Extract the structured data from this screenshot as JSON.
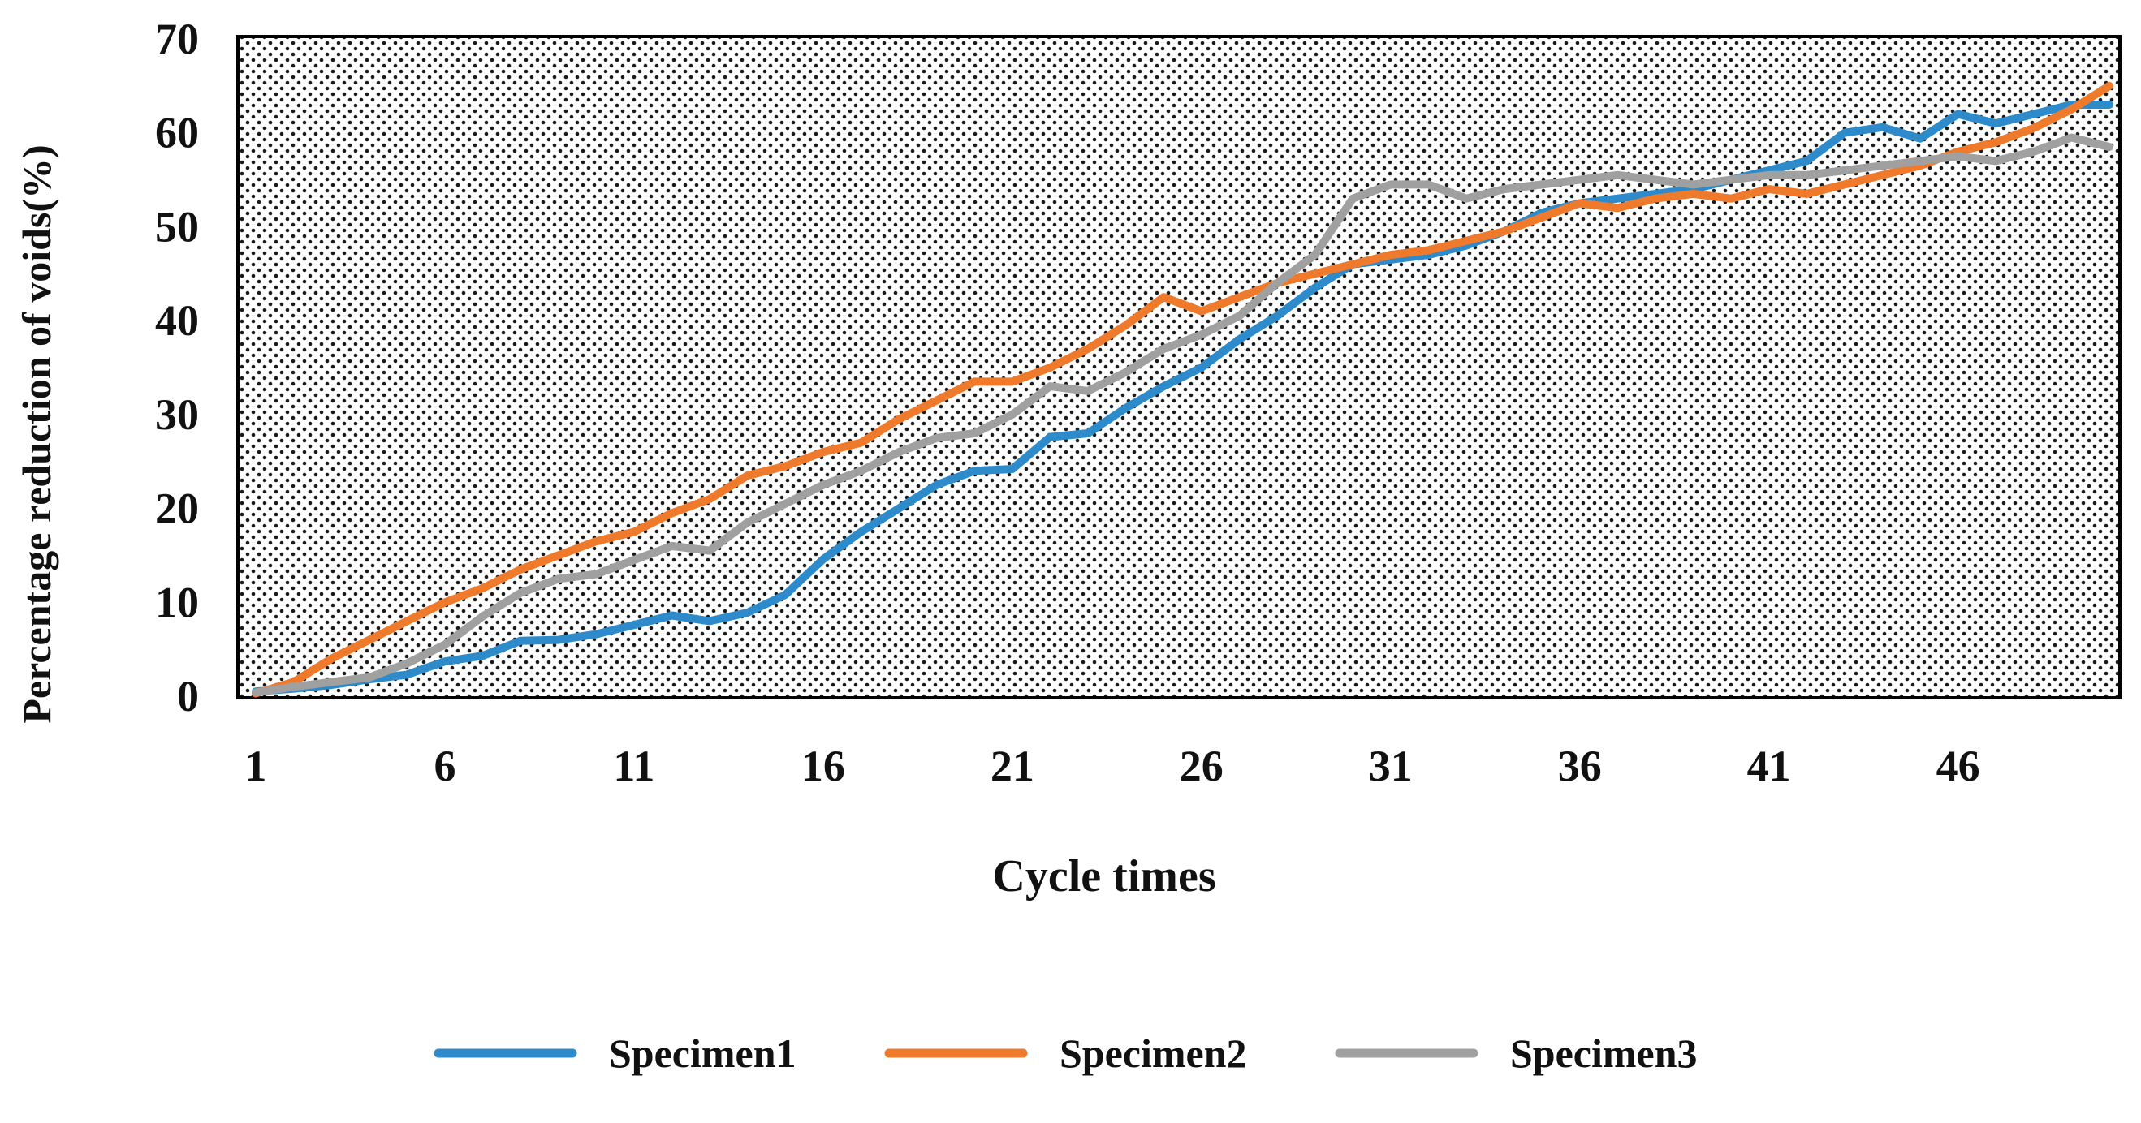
{
  "chart_data": {
    "type": "line",
    "title": "",
    "xlabel": "Cycle times",
    "ylabel": "Percentage reduction of voids(%)",
    "ylim": [
      0,
      70
    ],
    "xlim": [
      1,
      50
    ],
    "x_ticks": [
      "1",
      "6",
      "11",
      "16",
      "21",
      "26",
      "31",
      "36",
      "41",
      "46"
    ],
    "y_ticks": [
      "0",
      "10",
      "20",
      "30",
      "40",
      "50",
      "60",
      "70"
    ],
    "grid": false,
    "legend_position": "bottom",
    "x": [
      1,
      2,
      3,
      4,
      5,
      6,
      7,
      8,
      9,
      10,
      11,
      12,
      13,
      14,
      15,
      16,
      17,
      18,
      19,
      20,
      21,
      22,
      23,
      24,
      25,
      26,
      27,
      28,
      29,
      30,
      31,
      32,
      33,
      34,
      35,
      36,
      37,
      38,
      39,
      40,
      41,
      42,
      43,
      44,
      45,
      46,
      47,
      48,
      49,
      50
    ],
    "series": [
      {
        "name": "Specimen1",
        "color": "#2E8BCB",
        "values": [
          0.5,
          0.8,
          1.2,
          1.8,
          2.3,
          3.7,
          4.3,
          5.9,
          6.0,
          6.6,
          7.6,
          8.6,
          8.0,
          8.9,
          10.8,
          14.6,
          17.5,
          20.0,
          22.5,
          24.0,
          24.2,
          27.6,
          28.0,
          30.7,
          33.0,
          35.0,
          38.0,
          40.5,
          43.5,
          46.0,
          46.5,
          47.0,
          48.0,
          49.5,
          51.5,
          52.5,
          53.0,
          53.5,
          54.0,
          55.0,
          56.0,
          57.0,
          60.0,
          60.6,
          59.4,
          62.0,
          61.0,
          62.0,
          63.0,
          63.0
        ]
      },
      {
        "name": "Specimen2",
        "color": "#F07A2C",
        "values": [
          0.3,
          1.5,
          4.0,
          6.0,
          8.0,
          10.0,
          11.5,
          13.5,
          15.0,
          16.5,
          17.5,
          19.5,
          21.0,
          23.5,
          24.5,
          26.0,
          27.0,
          29.5,
          31.5,
          33.5,
          33.5,
          35.0,
          37.0,
          39.5,
          42.5,
          41.0,
          42.5,
          44.0,
          45.0,
          46.0,
          47.0,
          47.5,
          48.5,
          49.5,
          51.0,
          52.5,
          52.0,
          53.0,
          53.5,
          53.0,
          54.0,
          53.5,
          54.5,
          55.5,
          56.5,
          58.0,
          59.0,
          60.5,
          62.5,
          65.0
        ]
      },
      {
        "name": "Specimen3",
        "color": "#A0A0A0",
        "values": [
          0.4,
          1.0,
          1.5,
          2.0,
          3.5,
          5.5,
          8.5,
          11.0,
          12.5,
          13.0,
          14.5,
          16.0,
          15.5,
          18.5,
          20.5,
          22.5,
          24.0,
          26.0,
          27.5,
          28.0,
          30.0,
          33.0,
          32.5,
          34.5,
          37.0,
          38.5,
          40.5,
          44.0,
          47.0,
          53.0,
          54.5,
          54.5,
          53.0,
          54.0,
          54.5,
          55.0,
          55.5,
          55.0,
          54.5,
          55.0,
          55.5,
          55.5,
          56.0,
          56.5,
          57.0,
          57.5,
          57.0,
          58.0,
          59.5,
          58.5
        ]
      }
    ]
  }
}
